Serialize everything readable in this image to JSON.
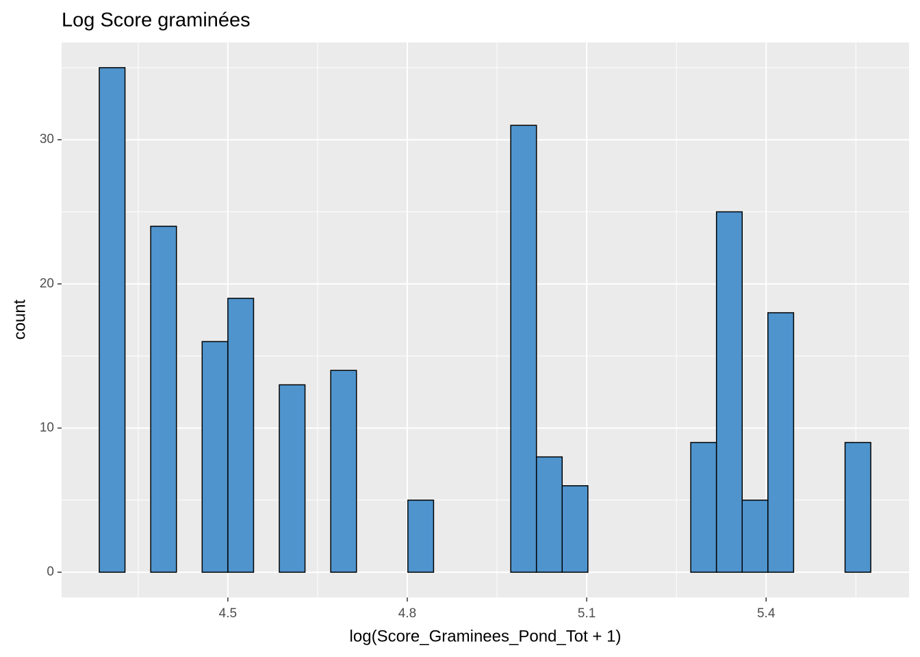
{
  "chart_data": {
    "type": "histogram",
    "title": "Log Score graminées",
    "x_label": "log(Score_Graminees_Pond_Tot + 1)",
    "y_label": "count",
    "bins": [
      4.285,
      4.328,
      4.371,
      4.414,
      4.457,
      4.5,
      4.543,
      4.586,
      4.629,
      4.672,
      4.715,
      4.758,
      4.801,
      4.844,
      4.887,
      4.93,
      4.973,
      5.016,
      5.059,
      5.102,
      5.145,
      5.188,
      5.231,
      5.274,
      5.317,
      5.36,
      5.403,
      5.446,
      5.489,
      5.532,
      5.575
    ],
    "values": [
      35,
      0,
      24,
      0,
      16,
      19,
      0,
      13,
      0,
      14,
      0,
      0,
      5,
      0,
      0,
      0,
      31,
      8,
      6,
      0,
      0,
      0,
      0,
      9,
      25,
      5,
      18,
      0,
      0,
      9
    ],
    "color": "#4f94cd",
    "xlim": [
      4.222,
      5.639
    ],
    "ylim": [
      -1.75,
      36.75
    ],
    "xticks": [
      4.5,
      4.8,
      5.1,
      5.4
    ],
    "yticks": [
      0,
      10,
      20,
      30
    ],
    "x_minor_grid": [
      4.35,
      4.65,
      4.95,
      5.25,
      5.55
    ],
    "y_minor_grid": [
      5,
      15,
      25,
      35
    ],
    "grid": true
  }
}
